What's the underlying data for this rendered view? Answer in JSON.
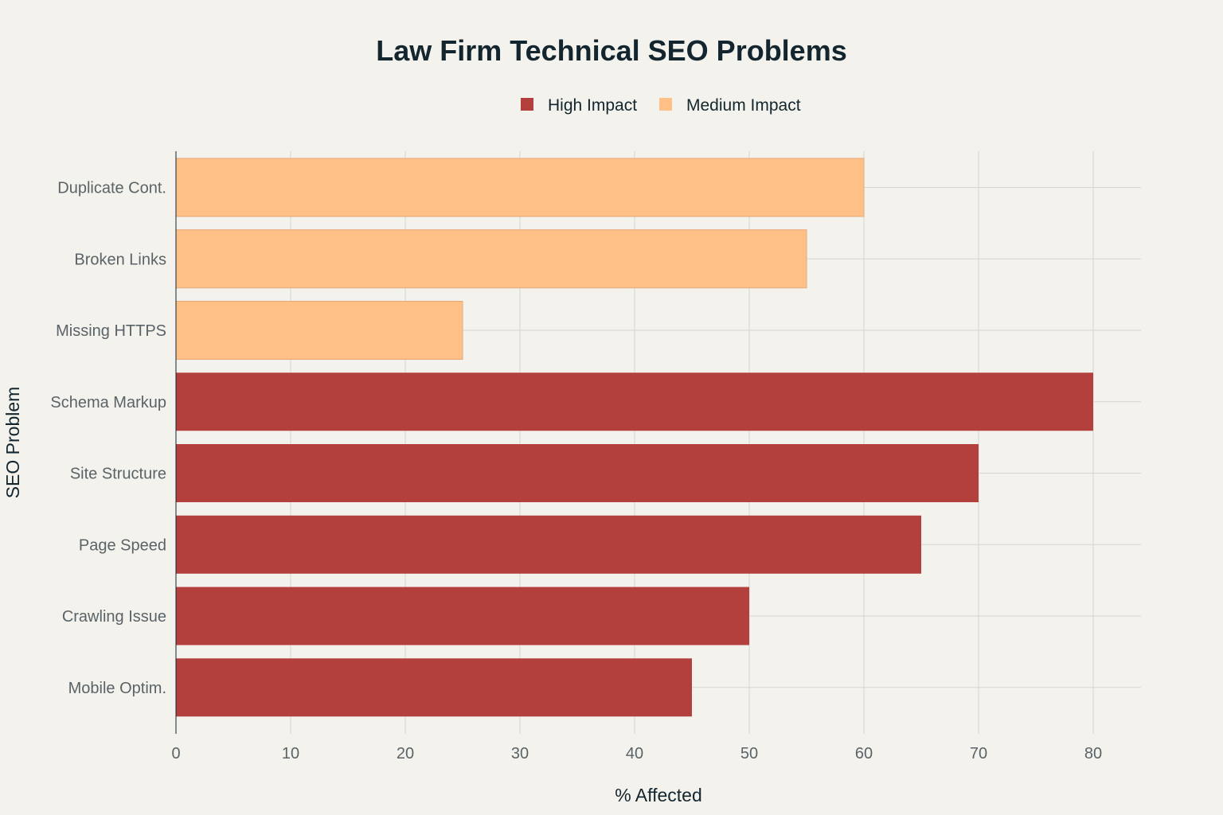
{
  "chart_data": {
    "type": "bar",
    "orientation": "horizontal",
    "title": "Law Firm Technical SEO Problems",
    "xlabel": "% Affected",
    "ylabel": "SEO Problem",
    "xlim": [
      0,
      84
    ],
    "xticks": [
      0,
      10,
      20,
      30,
      40,
      50,
      60,
      70,
      80
    ],
    "grid": true,
    "legend_position": "top-center",
    "series": [
      {
        "name": "High Impact",
        "color": "#b4403d"
      },
      {
        "name": "Medium Impact",
        "color": "#fec087"
      }
    ],
    "bars": [
      {
        "category": "Duplicate Cont.",
        "value": 60,
        "series": "Medium Impact"
      },
      {
        "category": "Broken Links",
        "value": 55,
        "series": "Medium Impact"
      },
      {
        "category": "Missing HTTPS",
        "value": 25,
        "series": "Medium Impact"
      },
      {
        "category": "Schema Markup",
        "value": 80,
        "series": "High Impact"
      },
      {
        "category": "Site Structure",
        "value": 70,
        "series": "High Impact"
      },
      {
        "category": "Page Speed",
        "value": 65,
        "series": "High Impact"
      },
      {
        "category": "Crawling Issue",
        "value": 50,
        "series": "High Impact"
      },
      {
        "category": "Mobile Optim.",
        "value": 45,
        "series": "High Impact"
      }
    ]
  }
}
